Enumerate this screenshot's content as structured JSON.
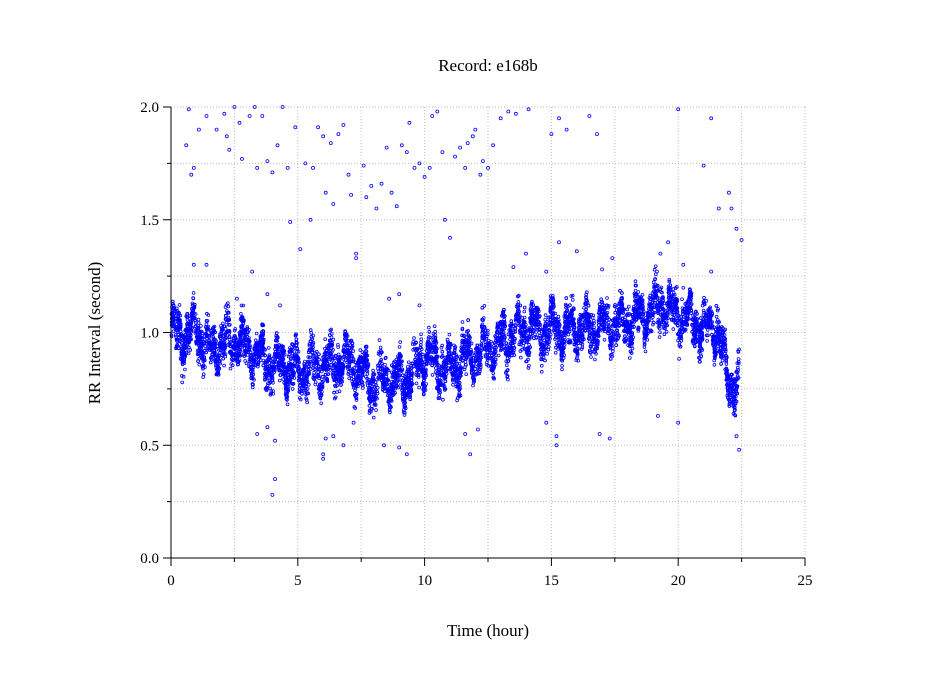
{
  "chart_data": {
    "type": "scatter",
    "title": "Record:  e168b",
    "xlabel": "Time (hour)",
    "ylabel": "RR Interval (second)",
    "xlim": [
      0,
      25
    ],
    "ylim": [
      0,
      2.0
    ],
    "xticks": [
      0,
      5,
      10,
      15,
      20,
      25
    ],
    "xtick_labels": [
      "0",
      "5",
      "10",
      "15",
      "20",
      "25"
    ],
    "yticks": [
      0.0,
      0.5,
      1.0,
      1.5,
      2.0
    ],
    "ytick_labels": [
      "0.0",
      "0.5",
      "1.0",
      "1.5",
      "2.0"
    ],
    "grid": true,
    "marker_color": "#0000ff",
    "series": [
      {
        "trend": [
          [
            0.0,
            1.0
          ],
          [
            0.5,
            0.98
          ],
          [
            1.0,
            1.02
          ],
          [
            1.5,
            0.92
          ],
          [
            2.0,
            0.95
          ],
          [
            2.5,
            0.97
          ],
          [
            3.0,
            0.93
          ],
          [
            3.5,
            0.9
          ],
          [
            4.0,
            0.85
          ],
          [
            4.5,
            0.86
          ],
          [
            5.0,
            0.83
          ],
          [
            5.5,
            0.85
          ],
          [
            6.0,
            0.84
          ],
          [
            6.5,
            0.87
          ],
          [
            7.0,
            0.88
          ],
          [
            7.5,
            0.82
          ],
          [
            8.0,
            0.78
          ],
          [
            8.5,
            0.8
          ],
          [
            9.0,
            0.78
          ],
          [
            9.5,
            0.82
          ],
          [
            10.0,
            0.9
          ],
          [
            10.5,
            0.86
          ],
          [
            11.0,
            0.84
          ],
          [
            11.5,
            0.88
          ],
          [
            12.0,
            0.9
          ],
          [
            12.5,
            0.93
          ],
          [
            13.0,
            0.95
          ],
          [
            13.5,
            1.0
          ],
          [
            14.0,
            1.02
          ],
          [
            14.5,
            1.0
          ],
          [
            15.0,
            1.03
          ],
          [
            15.5,
            1.0
          ],
          [
            16.0,
            1.02
          ],
          [
            16.5,
            1.02
          ],
          [
            17.0,
            1.03
          ],
          [
            17.5,
            1.05
          ],
          [
            18.0,
            1.04
          ],
          [
            18.5,
            1.07
          ],
          [
            19.0,
            1.1
          ],
          [
            19.5,
            1.12
          ],
          [
            20.0,
            1.08
          ],
          [
            20.5,
            1.06
          ],
          [
            21.0,
            1.02
          ],
          [
            21.5,
            1.03
          ],
          [
            22.0,
            0.78
          ],
          [
            22.4,
            0.78
          ]
        ],
        "outliers": [
          [
            0.7,
            1.99
          ],
          [
            0.8,
            1.7
          ],
          [
            0.9,
            1.73
          ],
          [
            0.6,
            1.83
          ],
          [
            1.1,
            1.9
          ],
          [
            1.4,
            1.96
          ],
          [
            1.8,
            1.9
          ],
          [
            2.1,
            1.97
          ],
          [
            2.2,
            1.87
          ],
          [
            2.3,
            1.81
          ],
          [
            2.5,
            2.0
          ],
          [
            2.7,
            1.93
          ],
          [
            2.8,
            1.77
          ],
          [
            3.1,
            1.96
          ],
          [
            3.3,
            2.0
          ],
          [
            3.4,
            1.73
          ],
          [
            3.6,
            1.96
          ],
          [
            3.8,
            1.76
          ],
          [
            4.0,
            1.71
          ],
          [
            4.2,
            1.83
          ],
          [
            4.4,
            2.0
          ],
          [
            4.6,
            1.73
          ],
          [
            4.7,
            1.49
          ],
          [
            4.9,
            1.91
          ],
          [
            5.1,
            1.37
          ],
          [
            5.3,
            1.75
          ],
          [
            5.5,
            1.5
          ],
          [
            5.6,
            1.73
          ],
          [
            5.8,
            1.91
          ],
          [
            6.0,
            1.87
          ],
          [
            6.1,
            1.62
          ],
          [
            6.3,
            1.84
          ],
          [
            6.4,
            1.57
          ],
          [
            6.6,
            1.88
          ],
          [
            6.8,
            1.92
          ],
          [
            7.0,
            1.7
          ],
          [
            7.1,
            1.61
          ],
          [
            7.3,
            1.33
          ],
          [
            7.6,
            1.74
          ],
          [
            7.7,
            1.6
          ],
          [
            7.9,
            1.65
          ],
          [
            8.1,
            1.55
          ],
          [
            8.3,
            1.66
          ],
          [
            8.5,
            1.82
          ],
          [
            8.7,
            1.62
          ],
          [
            8.9,
            1.56
          ],
          [
            9.1,
            1.83
          ],
          [
            9.3,
            1.8
          ],
          [
            9.4,
            1.93
          ],
          [
            9.6,
            1.73
          ],
          [
            9.8,
            1.75
          ],
          [
            10.0,
            1.69
          ],
          [
            10.2,
            1.73
          ],
          [
            10.3,
            1.96
          ],
          [
            10.5,
            1.98
          ],
          [
            10.7,
            1.8
          ],
          [
            10.8,
            1.5
          ],
          [
            11.0,
            1.42
          ],
          [
            11.2,
            1.78
          ],
          [
            11.4,
            1.82
          ],
          [
            11.6,
            1.73
          ],
          [
            11.7,
            1.84
          ],
          [
            11.9,
            1.87
          ],
          [
            12.0,
            1.9
          ],
          [
            12.2,
            1.7
          ],
          [
            12.3,
            1.76
          ],
          [
            12.5,
            1.73
          ],
          [
            12.7,
            1.83
          ],
          [
            13.0,
            1.95
          ],
          [
            13.3,
            1.98
          ],
          [
            13.6,
            1.97
          ],
          [
            14.1,
            1.99
          ],
          [
            15.0,
            1.88
          ],
          [
            15.3,
            1.95
          ],
          [
            15.6,
            1.9
          ],
          [
            16.0,
            1.36
          ],
          [
            16.5,
            1.96
          ],
          [
            16.8,
            1.88
          ],
          [
            20.0,
            1.99
          ],
          [
            21.0,
            1.74
          ],
          [
            21.3,
            1.95
          ],
          [
            21.6,
            1.55
          ],
          [
            22.0,
            1.62
          ],
          [
            22.1,
            1.55
          ],
          [
            22.3,
            1.46
          ],
          [
            22.5,
            1.41
          ],
          [
            4.0,
            0.28
          ],
          [
            4.1,
            0.35
          ],
          [
            4.1,
            0.52
          ],
          [
            3.8,
            0.58
          ],
          [
            3.4,
            0.55
          ],
          [
            6.0,
            0.44
          ],
          [
            6.0,
            0.46
          ],
          [
            6.1,
            0.53
          ],
          [
            6.4,
            0.54
          ],
          [
            6.8,
            0.5
          ],
          [
            7.2,
            0.6
          ],
          [
            7.3,
            1.35
          ],
          [
            8.4,
            0.5
          ],
          [
            9.0,
            0.49
          ],
          [
            9.3,
            0.46
          ],
          [
            11.6,
            0.55
          ],
          [
            11.8,
            0.46
          ],
          [
            12.1,
            0.57
          ],
          [
            14.8,
            0.6
          ],
          [
            15.2,
            0.5
          ],
          [
            15.2,
            0.54
          ],
          [
            16.9,
            0.55
          ],
          [
            17.3,
            0.53
          ],
          [
            19.2,
            0.63
          ],
          [
            20.0,
            0.6
          ],
          [
            22.4,
            0.48
          ],
          [
            22.3,
            0.54
          ],
          [
            3.2,
            1.27
          ],
          [
            3.8,
            1.17
          ],
          [
            4.3,
            1.12
          ],
          [
            2.6,
            1.15
          ],
          [
            1.4,
            1.3
          ],
          [
            0.9,
            1.3
          ],
          [
            8.6,
            1.15
          ],
          [
            9.0,
            1.17
          ],
          [
            9.8,
            1.12
          ],
          [
            13.5,
            1.29
          ],
          [
            14.0,
            1.35
          ],
          [
            14.8,
            1.27
          ],
          [
            15.3,
            1.4
          ],
          [
            17.4,
            1.33
          ],
          [
            17.0,
            1.28
          ],
          [
            19.3,
            1.35
          ],
          [
            19.6,
            1.4
          ],
          [
            20.2,
            1.3
          ],
          [
            21.3,
            1.27
          ]
        ]
      }
    ]
  }
}
